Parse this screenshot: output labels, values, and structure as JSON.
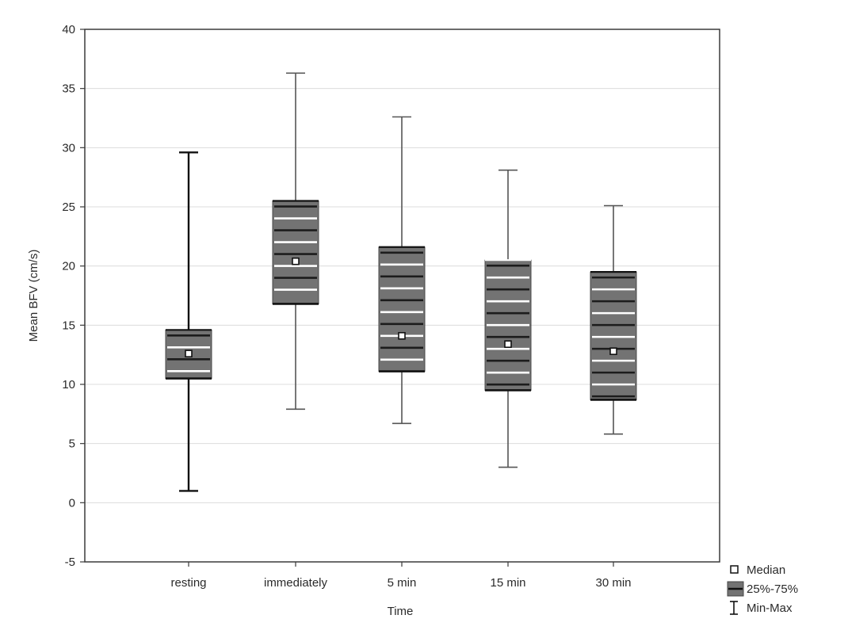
{
  "chart_data": {
    "type": "box",
    "title": "",
    "xlabel": "Time",
    "ylabel": "Mean BFV (cm/s)",
    "ylim": [
      -5,
      40
    ],
    "yticks": [
      -5,
      0,
      5,
      10,
      15,
      20,
      25,
      30,
      35,
      40
    ],
    "grid": true,
    "legend_position": "bottom-right outside",
    "categories": [
      "resting",
      "immediately",
      "5 min",
      "15 min",
      "30 min"
    ],
    "boxes": [
      {
        "category": "resting",
        "min": 1.0,
        "q1": 10.5,
        "median": 12.6,
        "q3": 14.6,
        "max": 29.6
      },
      {
        "category": "immediately",
        "min": 7.9,
        "q1": 16.8,
        "median": 20.4,
        "q3": 25.5,
        "max": 36.3
      },
      {
        "category": "5 min",
        "min": 6.7,
        "q1": 11.1,
        "median": 14.1,
        "q3": 21.6,
        "max": 32.6
      },
      {
        "category": "15 min",
        "min": 3.0,
        "q1": 9.5,
        "median": 13.4,
        "q3": 20.5,
        "max": 28.1
      },
      {
        "category": "30 min",
        "min": 5.8,
        "q1": 8.7,
        "median": 12.8,
        "q3": 19.5,
        "max": 25.1
      }
    ],
    "legend": [
      {
        "key": "median",
        "label": "Median"
      },
      {
        "key": "box",
        "label": "25%-75%"
      },
      {
        "key": "whisker",
        "label": "Min-Max"
      }
    ],
    "colors": {
      "box_fill": "#737373",
      "box_stripe_dark": "#1c1c1c",
      "box_stripe_light": "#ffffff",
      "whisker": "#555555",
      "grid": "#dcdcdc",
      "frame": "#3a3a3a"
    }
  }
}
